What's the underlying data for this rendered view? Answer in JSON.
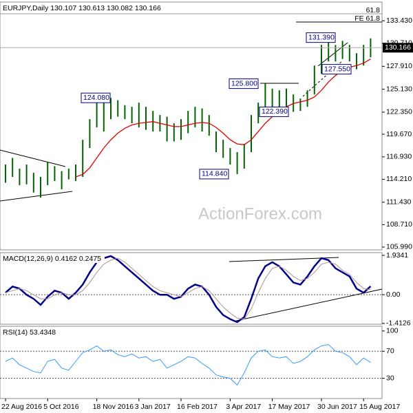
{
  "chart_data": [
    {
      "type": "range",
      "title": "EURJPY,Daily 130.107 130.613 130.082 130.166",
      "color": "#006400",
      "high": [
        116.0,
        116.8,
        115.5,
        116.0,
        115.0,
        114.5,
        116.3,
        115.8,
        115.2,
        115.5,
        116.0,
        119.0,
        121.5,
        124.0,
        123.8,
        124.08,
        123.8,
        123.2,
        123.0,
        123.5,
        123.0,
        122.5,
        122.0,
        121.8,
        121.0,
        121.5,
        122.5,
        123.0,
        122.8,
        122.0,
        120.0,
        119.0,
        118.0,
        117.5,
        118.5,
        122.0,
        123.5,
        125.8,
        125.2,
        125.0,
        125.2,
        124.5,
        124.0,
        125.0,
        128.0,
        130.5,
        131.39,
        130.5,
        131.0,
        130.5,
        129.5,
        130.5,
        131.3
      ],
      "low": [
        113.8,
        114.5,
        113.5,
        113.6,
        112.6,
        112.0,
        113.5,
        114.0,
        113.0,
        114.2,
        114.0,
        114.5,
        118.0,
        120.5,
        120.0,
        121.5,
        121.8,
        121.5,
        121.0,
        120.5,
        120.2,
        120.0,
        120.0,
        118.8,
        118.8,
        119.0,
        119.8,
        120.5,
        120.0,
        119.5,
        117.5,
        116.8,
        116.0,
        114.84,
        115.5,
        117.5,
        121.0,
        122.5,
        122.5,
        122.5,
        122.8,
        122.39,
        122.5,
        123.0,
        124.5,
        127.0,
        128.5,
        128.5,
        128.8,
        128.5,
        127.55,
        128.0,
        129.0
      ],
      "ma": {
        "color": "#e00000",
        "values": [
          null,
          null,
          null,
          null,
          null,
          null,
          null,
          null,
          null,
          null,
          114.5,
          114.8,
          115.6,
          116.8,
          118.0,
          119.0,
          119.8,
          120.4,
          120.8,
          121.0,
          121.1,
          121.2,
          121.0,
          120.8,
          120.6,
          120.6,
          120.8,
          121.0,
          121.1,
          121.0,
          120.5,
          119.8,
          119.0,
          118.5,
          118.4,
          119.0,
          120.0,
          121.0,
          121.8,
          122.5,
          123.0,
          123.4,
          123.6,
          123.8,
          124.2,
          125.0,
          126.0,
          126.8,
          127.4,
          127.8,
          128.0,
          128.3,
          128.8
        ]
      },
      "ylim": [
        105.65,
        135.7
      ],
      "yticks": [
        {
          "value": 133.43,
          "label": "133.430"
        },
        {
          "value": 130.71,
          "label": "130.710"
        },
        {
          "value": 127.91,
          "label": "127.910"
        },
        {
          "value": 125.13,
          "label": "125.130"
        },
        {
          "value": 122.35,
          "label": "122.350"
        },
        {
          "value": 119.67,
          "label": "119.670"
        },
        {
          "value": 116.93,
          "label": "116.930"
        },
        {
          "value": 114.21,
          "label": "114.210"
        },
        {
          "value": 111.43,
          "label": "111.430"
        },
        {
          "value": 108.71,
          "label": "108.710"
        },
        {
          "value": 105.99,
          "label": "105.990"
        }
      ],
      "last": {
        "value": 130.166,
        "label": "130.166"
      },
      "annotations": [
        {
          "value": 124.08,
          "label": "124.080"
        },
        {
          "value": 114.84,
          "label": "114.840"
        },
        {
          "value": 125.8,
          "label": "125.800"
        },
        {
          "value": 122.39,
          "label": "122.390"
        },
        {
          "value": 131.39,
          "label": "131.390"
        },
        {
          "value": 127.55,
          "label": "127.550"
        }
      ],
      "notes": [
        "61.8",
        "FE 61.8"
      ],
      "watermark": "ActionForex.com"
    },
    {
      "type": "line",
      "title": "MACD(12,26,9) 0.4162 0.2475",
      "series": [
        {
          "color": "#00008b",
          "width": 2.5,
          "values": [
            0.1,
            0.4,
            0.3,
            0.0,
            -0.2,
            -0.5,
            -0.1,
            0.2,
            0.1,
            -0.2,
            0.1,
            0.5,
            1.1,
            1.6,
            1.8,
            1.9,
            1.7,
            1.4,
            1.1,
            0.8,
            0.5,
            0.2,
            0.0,
            0.0,
            -0.2,
            -0.1,
            0.3,
            0.5,
            0.4,
            0.0,
            -0.6,
            -1.0,
            -1.2,
            -1.35,
            -1.1,
            -0.2,
            0.8,
            1.4,
            1.6,
            1.4,
            1.0,
            0.6,
            0.5,
            0.9,
            1.4,
            1.8,
            1.7,
            1.3,
            1.1,
            0.9,
            0.3,
            0.1,
            0.4162
          ]
        },
        {
          "color": "#b09090",
          "width": 1,
          "values": [
            0.1,
            0.2,
            0.3,
            0.2,
            0.0,
            -0.2,
            -0.2,
            0.0,
            0.1,
            0.0,
            0.0,
            0.2,
            0.6,
            1.1,
            1.5,
            1.7,
            1.8,
            1.6,
            1.3,
            1.0,
            0.7,
            0.4,
            0.2,
            0.1,
            0.0,
            -0.1,
            0.1,
            0.3,
            0.4,
            0.2,
            -0.2,
            -0.6,
            -0.9,
            -1.15,
            -1.2,
            -0.7,
            0.1,
            0.8,
            1.3,
            1.4,
            1.2,
            0.9,
            0.7,
            0.8,
            1.1,
            1.5,
            1.6,
            1.5,
            1.2,
            1.0,
            0.6,
            0.3,
            0.2475
          ]
        }
      ],
      "ylim": [
        -1.45,
        2.07
      ],
      "yticks": [
        1.9341,
        {
          "value": 0,
          "label": "0.00"
        },
        -1.4126
      ],
      "ref_lines": [
        0
      ]
    },
    {
      "type": "line",
      "title": "RSI(14) 53.4348",
      "series": [
        {
          "color": "#3399ff",
          "width": 1,
          "values": [
            55,
            60,
            50,
            45,
            40,
            38,
            55,
            58,
            45,
            42,
            55,
            68,
            72,
            78,
            70,
            72,
            65,
            62,
            66,
            60,
            62,
            55,
            58,
            45,
            50,
            55,
            62,
            60,
            52,
            45,
            35,
            32,
            30,
            20,
            38,
            60,
            70,
            72,
            62,
            60,
            62,
            52,
            55,
            62,
            72,
            78,
            80,
            70,
            68,
            62,
            50,
            60,
            53.4348
          ]
        }
      ],
      "ylim": [
        0,
        107
      ],
      "yticks": [
        30,
        70,
        100
      ],
      "ref_lines": [
        30,
        70
      ],
      "categories": [
        "22 Aug 2016",
        null,
        null,
        null,
        null,
        null,
        "5 Oct 2016",
        null,
        null,
        null,
        null,
        null,
        null,
        "18 Nov 2016",
        null,
        null,
        null,
        null,
        null,
        "3 Jan 2017",
        null,
        null,
        null,
        null,
        null,
        "16 Feb 2017",
        null,
        null,
        null,
        null,
        null,
        null,
        "3 Apr 2017",
        null,
        null,
        null,
        null,
        null,
        "17 May 2017",
        null,
        null,
        null,
        null,
        null,
        null,
        "30 Jun 2017",
        null,
        null,
        null,
        null,
        null,
        "15 Aug 2017",
        null
      ]
    }
  ]
}
